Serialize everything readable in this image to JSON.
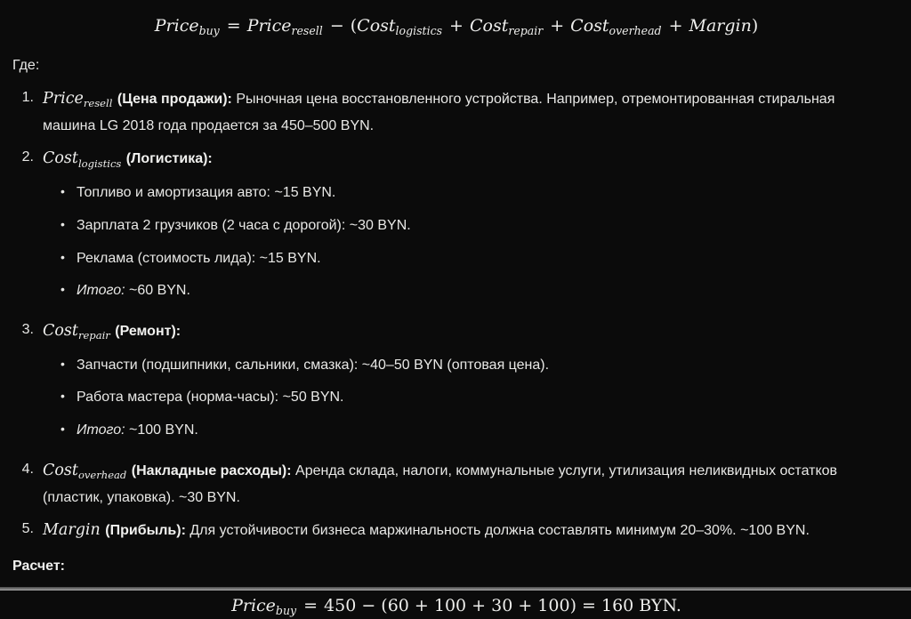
{
  "theme": {
    "background": "#0b0b0b",
    "text_color": "#e8e8e6",
    "formula_color": "#eeeeec",
    "bottom_bar_color": "#a3a3a3"
  },
  "formula_top": {
    "lhs_base": "Price",
    "lhs_sub": "buy",
    "eq": "=",
    "resell_base": "Price",
    "resell_sub": "resell",
    "minus": "−",
    "open_paren": "(",
    "logistics_base": "Cost",
    "logistics_sub": "logistics",
    "plus1": "+",
    "repair_base": "Cost",
    "repair_sub": "repair",
    "plus2": "+",
    "overhead_base": "Cost",
    "overhead_sub": "overhead",
    "plus3": "+",
    "margin_var": "Margin",
    "close_paren": ")"
  },
  "where_label": "Где:",
  "items": [
    {
      "number": "1.",
      "math_base": "Price",
      "math_sub": "resell",
      "bold_label": "(Цена продажи):",
      "text": "Рыночная цена восстановленного устройства. Например, отремонтированная стиральная машина LG 2018 года продается за 450–500 BYN."
    },
    {
      "number": "2.",
      "math_base": "Cost",
      "math_sub": "logistics",
      "bold_label": "(Логистика):",
      "bullets": [
        {
          "text": "Топливо и амортизация авто: ~15 BYN."
        },
        {
          "text": "Зарплата 2 грузчиков (2 часа с дорогой): ~30 BYN."
        },
        {
          "text": "Реклама (стоимость лида): ~15 BYN."
        },
        {
          "italic": "Итого:",
          "text": " ~60 BYN."
        }
      ]
    },
    {
      "number": "3.",
      "math_base": "Cost",
      "math_sub": "repair",
      "bold_label": "(Ремонт):",
      "bullets": [
        {
          "text": "Запчасти (подшипники, сальники, смазка): ~40–50 BYN (оптовая цена)."
        },
        {
          "text": "Работа мастера (норма-часы): ~50 BYN."
        },
        {
          "italic": "Итого:",
          "text": " ~100 BYN."
        }
      ]
    },
    {
      "number": "4.",
      "math_base": "Cost",
      "math_sub": "overhead",
      "bold_label": "(Накладные расходы):",
      "text": "Аренда склада, налоги, коммунальные услуги, утилизация неликвидных остатков (пластик, упаковка). ~30 BYN."
    },
    {
      "number": "5.",
      "math_base": "Margin",
      "math_sub": "",
      "bold_label": "(Прибыль):",
      "text": "Для устойчивости бизнеса маржинальность должна составлять минимум 20–30%. ~100 BYN."
    }
  ],
  "calc_label": "Расчет:",
  "formula_bottom": {
    "lhs_base": "Price",
    "lhs_sub": "buy",
    "eq": "=",
    "expression": "450 − (60 + 100 + 30 + 100) = 160 BYN."
  }
}
